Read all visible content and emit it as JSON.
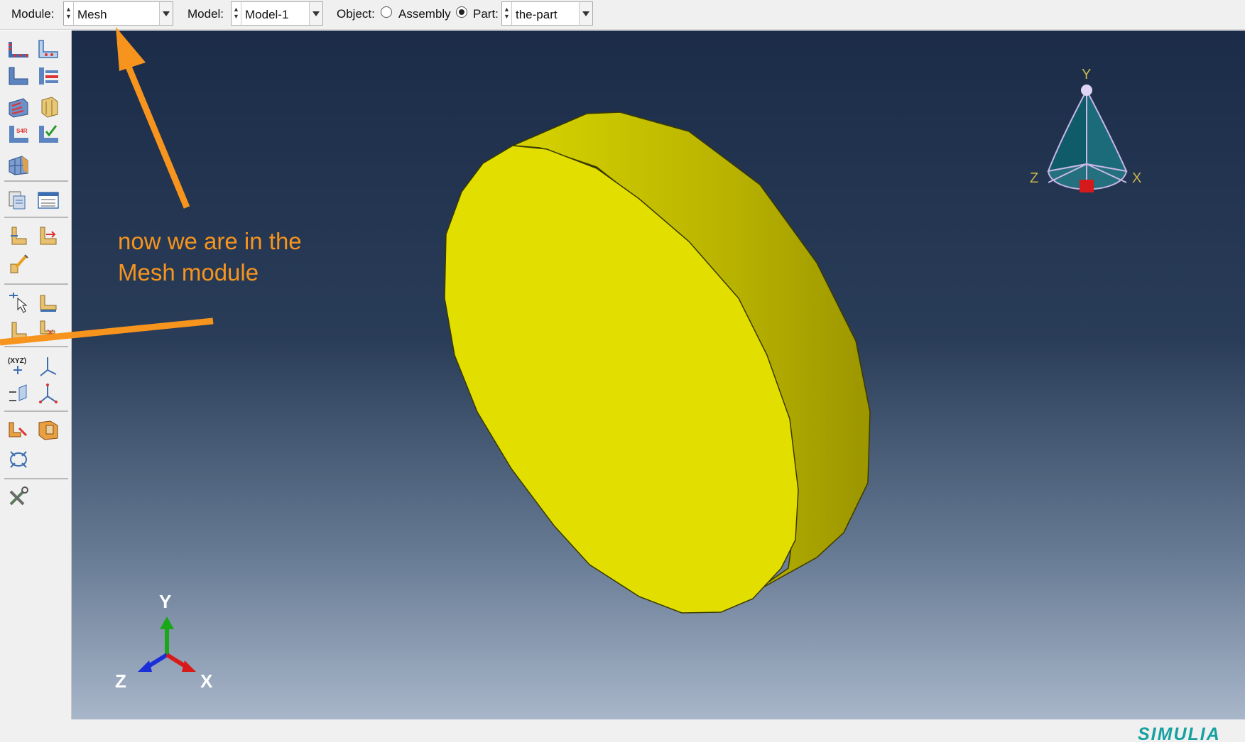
{
  "context_bar": {
    "module_label": "Module:",
    "module_value": "Mesh",
    "model_label": "Model:",
    "model_value": "Model-1",
    "object_label": "Object:",
    "assembly_label": "Assembly",
    "part_label": "Part:",
    "part_value": "the-part",
    "object_selected": "Part"
  },
  "annotation": {
    "line1": "now we are in the",
    "line2": "Mesh module"
  },
  "view_triad": {
    "y": "Y",
    "z": "Z",
    "x": "X"
  },
  "csys_triad": {
    "y": "Y",
    "z": "Z",
    "x": "X"
  },
  "brand": "SIMULIA",
  "colors": {
    "annotation": "#f7941d",
    "part": "#e2e000",
    "viewport_top": "#1b2c48",
    "viewport_bottom": "#a8b6c9",
    "brand": "#17a0a0"
  },
  "toolbox_icons": [
    "seed-part-icon",
    "seed-edges-icon",
    "delete-part-seeds-icon",
    "delete-edge-seeds-icon",
    "assign-mesh-controls-icon",
    "assign-element-type-icon",
    "element-type-s4r-icon",
    "verify-mesh-icon",
    "mesh-part-icon",
    "query-icon",
    "mesh-stats-icon",
    "partition-face-icon",
    "partition-edge-icon",
    "virtual-topology-icon",
    "edit-mesh-icon",
    "mesh-region-icon",
    "create-node-icon",
    "delete-mesh-icon",
    "datum-point-icon",
    "datum-axis-icon",
    "datum-plane-icon",
    "datum-csys-icon",
    "create-set-icon",
    "create-surface-icon",
    "reference-point-icon",
    "tools-icon"
  ]
}
